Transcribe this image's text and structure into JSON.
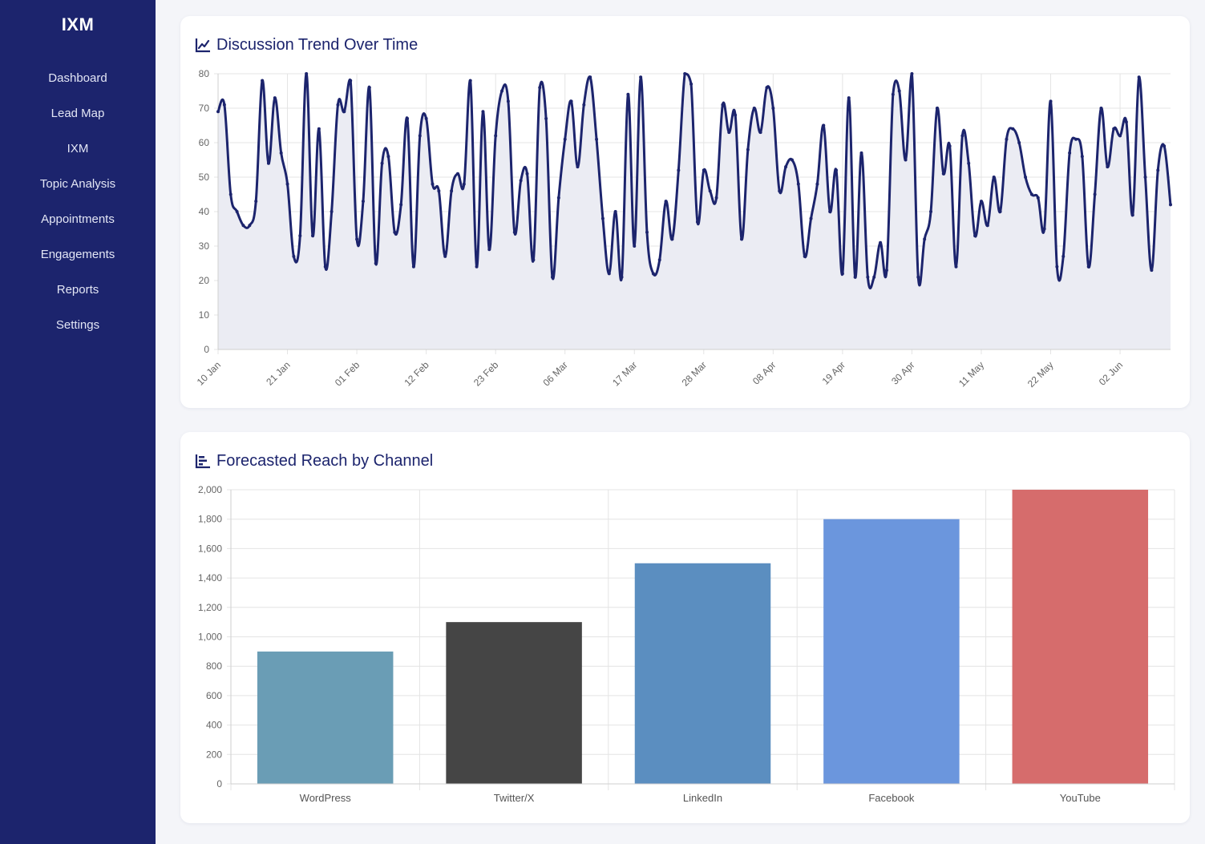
{
  "app": {
    "brand": "IXM"
  },
  "sidebar": {
    "items": [
      {
        "label": "Dashboard"
      },
      {
        "label": "Lead Map"
      },
      {
        "label": "IXM"
      },
      {
        "label": "Topic Analysis"
      },
      {
        "label": "Appointments"
      },
      {
        "label": "Engagements"
      },
      {
        "label": "Reports"
      },
      {
        "label": "Settings"
      }
    ]
  },
  "colors": {
    "sidebar": "#1c246d",
    "line": "#1c246d",
    "area_fill": "#ebecf3",
    "grid": "#e4e4e4"
  },
  "cards": {
    "trend": {
      "title": "Discussion Trend Over Time",
      "icon": "line-chart-icon"
    },
    "reach": {
      "title": "Forecasted Reach by Channel",
      "icon": "bar-chart-icon"
    }
  },
  "chart_data": [
    {
      "type": "area",
      "title": "Discussion Trend Over Time",
      "xlabel": "",
      "ylabel": "",
      "ylim": [
        0,
        80
      ],
      "yticks": [
        0,
        10,
        20,
        30,
        40,
        50,
        60,
        70,
        80
      ],
      "x_tick_labels": [
        "10 Jan",
        "21 Jan",
        "01 Feb",
        "12 Feb",
        "23 Feb",
        "06 Mar",
        "17 Mar",
        "28 Mar",
        "08 Apr",
        "19 Apr",
        "30 Apr",
        "11 May",
        "22 May",
        "02 Jun"
      ],
      "x_start": "10 Jan",
      "grid": true,
      "legend": "none",
      "series": [
        {
          "values": [
            69,
            71,
            45,
            40,
            36,
            36,
            43,
            78,
            54,
            73,
            57,
            48,
            27,
            33,
            80,
            33,
            64,
            24,
            40,
            71,
            69,
            78,
            32,
            43,
            76,
            25,
            54,
            56,
            34,
            42,
            67,
            24,
            62,
            67,
            48,
            46,
            27,
            46,
            51,
            48,
            78,
            24,
            69,
            29,
            62,
            75,
            72,
            34,
            49,
            51,
            26,
            76,
            67,
            21,
            44,
            61,
            72,
            53,
            71,
            79,
            61,
            38,
            22,
            40,
            21,
            74,
            30,
            79,
            34,
            22,
            26,
            43,
            32,
            52,
            80,
            77,
            37,
            52,
            46,
            44,
            71,
            63,
            68,
            32,
            58,
            70,
            63,
            76,
            70,
            46,
            53,
            55,
            48,
            27,
            38,
            48,
            65,
            40,
            52,
            22,
            73,
            21,
            57,
            21,
            21,
            31,
            23,
            74,
            75,
            55,
            80,
            21,
            32,
            40,
            70,
            51,
            59,
            24,
            62,
            54,
            33,
            43,
            36,
            50,
            40,
            61,
            64,
            60,
            50,
            45,
            44,
            35,
            72,
            24,
            27,
            57,
            61,
            56,
            24,
            45,
            70,
            53,
            64,
            62,
            66,
            39,
            79,
            50,
            23,
            52,
            59,
            42
          ]
        }
      ]
    },
    {
      "type": "bar",
      "title": "Forecasted Reach by Channel",
      "xlabel": "",
      "ylabel": "",
      "ylim": [
        0,
        2000
      ],
      "yticks": [
        "0",
        "200",
        "400",
        "600",
        "800",
        "1,000",
        "1,200",
        "1,400",
        "1,600",
        "1,800",
        "2,000"
      ],
      "grid": true,
      "legend": "none",
      "categories": [
        "WordPress",
        "Twitter/X",
        "LinkedIn",
        "Facebook",
        "YouTube"
      ],
      "values": [
        900,
        1100,
        1500,
        1800,
        2000
      ],
      "colors": [
        "#6a9db5",
        "#454545",
        "#5b8ec0",
        "#6b96dd",
        "#d66c6c"
      ]
    }
  ]
}
